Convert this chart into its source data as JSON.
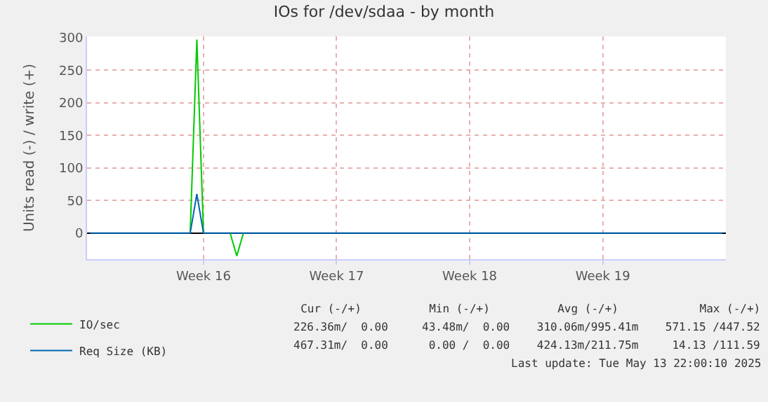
{
  "chart_data": {
    "type": "line",
    "title": "IOs for /dev/sdaa - by month",
    "ylabel": "Units read (-) / write (+)",
    "categories": [
      null,
      null,
      null,
      null,
      null,
      null,
      null,
      null,
      null,
      null,
      null,
      null,
      null,
      null,
      null,
      null,
      null,
      "Week 16",
      null,
      null,
      null,
      null,
      null,
      null,
      null,
      null,
      null,
      null,
      null,
      null,
      null,
      null,
      null,
      null,
      null,
      null,
      null,
      "Week 17",
      null,
      null,
      null,
      null,
      null,
      null,
      null,
      null,
      null,
      null,
      null,
      null,
      null,
      null,
      null,
      null,
      null,
      null,
      null,
      "Week 18",
      null,
      null,
      null,
      null,
      null,
      null,
      null,
      null,
      null,
      null,
      null,
      null,
      null,
      null,
      null,
      null,
      null,
      null,
      null,
      "Week 19",
      null,
      null,
      null,
      null,
      null,
      null,
      null,
      null,
      null,
      null,
      null,
      null,
      null,
      null,
      null,
      null,
      null,
      null
    ],
    "ylim": [
      -40,
      302
    ],
    "yticks": [
      0,
      50,
      100,
      150,
      200,
      250,
      300
    ],
    "grid": true,
    "legend": "bottom left",
    "marker": "none",
    "line_style": "solid",
    "series": [
      {
        "name": "IO/sec",
        "color": "#00cc00",
        "values": [
          null,
          null,
          null,
          null,
          null,
          null,
          null,
          null,
          null,
          null,
          null,
          null,
          null,
          null,
          null,
          0,
          297,
          0,
          null,
          null,
          null,
          0,
          -35,
          0,
          null,
          null,
          null,
          null,
          null,
          null,
          null,
          null,
          null,
          null,
          null,
          null,
          null,
          null,
          null,
          null,
          null,
          null,
          null,
          null,
          null,
          null,
          null,
          null,
          null,
          null,
          null,
          null,
          null,
          null,
          null,
          null,
          null,
          null,
          null,
          null,
          null,
          null,
          null,
          null,
          null,
          null,
          null,
          null,
          null,
          null,
          null,
          null,
          null,
          null,
          null,
          null,
          null,
          null,
          null,
          null,
          null,
          null,
          null,
          null,
          null,
          null,
          null,
          null,
          null,
          null,
          null,
          null,
          null,
          null,
          null,
          null
        ]
      },
      {
        "name": "Req Size (KB)",
        "color": "#0066b3",
        "values": [
          0,
          0,
          0,
          0,
          0,
          0,
          0,
          0,
          0,
          0,
          0,
          0,
          0,
          0,
          0,
          0,
          60,
          0,
          0,
          0,
          0,
          0,
          0,
          0,
          0,
          0,
          0,
          0,
          0,
          0,
          0,
          0,
          0,
          0,
          0,
          0,
          0,
          0,
          0,
          0,
          0,
          0,
          0,
          0,
          0,
          0,
          0,
          0,
          0,
          0,
          0,
          0,
          0,
          0,
          0,
          0,
          0,
          0,
          0,
          0,
          0,
          0,
          0,
          0,
          0,
          0,
          0,
          0,
          0,
          0,
          0,
          0,
          0,
          0,
          0,
          0,
          0,
          0,
          0,
          0,
          0,
          0,
          0,
          0,
          0,
          0,
          0,
          0,
          0,
          0,
          0,
          0,
          0,
          0,
          0,
          0
        ]
      }
    ],
    "annotations": [
      "     Cur (-/+)          Min (-/+)          Avg (-/+)            Max (-/+)",
      "226.36m/  0.00     43.48m/  0.00    310.06m/995.41m    571.15 /447.52",
      "467.31m/  0.00      0.00 /  0.00    424.13m/211.75m     14.13 /111.59",
      "Last update: Tue May 13 22:00:10 2025"
    ]
  }
}
